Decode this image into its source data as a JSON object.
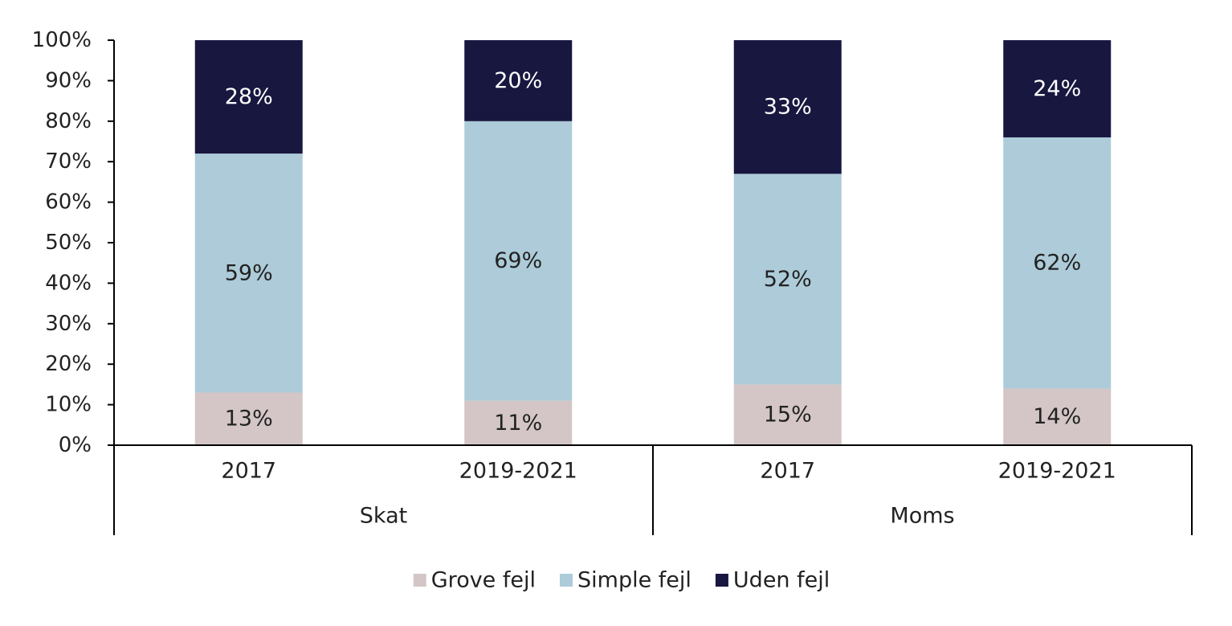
{
  "chart_data": {
    "type": "bar",
    "stacked": true,
    "categories": [
      "2017",
      "2019-2021",
      "2017",
      "2019-2021"
    ],
    "groups": [
      {
        "label": "Skat",
        "span": 2
      },
      {
        "label": "Moms",
        "span": 2
      }
    ],
    "series": [
      {
        "name": "Grove fejl",
        "color": "#d4c6c6",
        "values": [
          13,
          11,
          15,
          14
        ],
        "labels": [
          "13%",
          "11%",
          "15%",
          "14%"
        ],
        "label_color": "#222222"
      },
      {
        "name": "Simple fejl",
        "color": "#adcbd8",
        "values": [
          59,
          69,
          52,
          62
        ],
        "labels": [
          "59%",
          "69%",
          "52%",
          "62%"
        ],
        "label_color": "#222222"
      },
      {
        "name": "Uden fejl",
        "color": "#171740",
        "values": [
          28,
          20,
          33,
          24
        ],
        "labels": [
          "28%",
          "20%",
          "33%",
          "24%"
        ],
        "label_color": "#ffffff"
      }
    ],
    "ylim": [
      0,
      100
    ],
    "yticks": [
      0,
      10,
      20,
      30,
      40,
      50,
      60,
      70,
      80,
      90,
      100
    ],
    "ytick_labels": [
      "0%",
      "10%",
      "20%",
      "30%",
      "40%",
      "50%",
      "60%",
      "70%",
      "80%",
      "90%",
      "100%"
    ],
    "grid": false,
    "legend_position": "bottom"
  }
}
